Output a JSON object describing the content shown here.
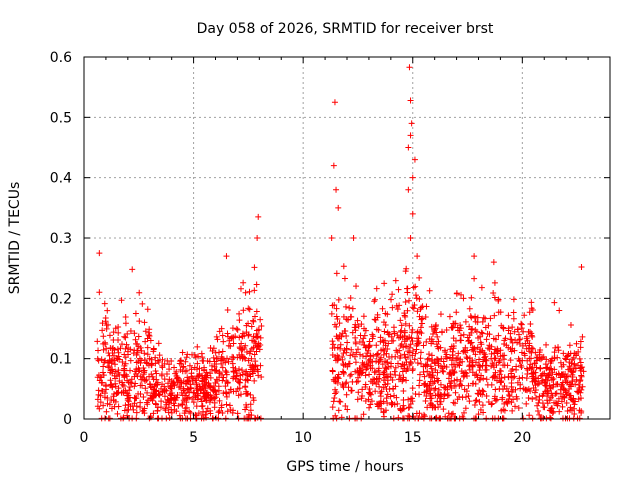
{
  "chart_data": {
    "type": "scatter",
    "title": "Day 058 of 2026, SRMTID for receiver brst",
    "xlabel": "GPS time / hours",
    "ylabel": "SRMTID / TECUs",
    "xlim": [
      0,
      24
    ],
    "ylim": [
      0,
      0.6
    ],
    "xticks": [
      0,
      5,
      10,
      15,
      20
    ],
    "xtick_labels": [
      "0",
      "5",
      "10",
      "15",
      "20"
    ],
    "yticks": [
      0,
      0.1,
      0.2,
      0.3,
      0.4,
      0.5,
      0.6
    ],
    "ytick_labels": [
      "0",
      "0.1",
      "0.2",
      "0.3",
      "0.4",
      "0.5",
      "0.6"
    ],
    "grid": true,
    "marker": "+",
    "series_color": "#ff0000",
    "series": [
      {
        "name": "SRMTID",
        "segments": [
          {
            "x_range": [
              0.6,
              8.1
            ],
            "profile": "dense low band 0-0.15 rising after 5.5h"
          },
          {
            "x_range": [
              11.3,
              22.8
            ],
            "profile": "dense band 0-0.2 with spikes near 11.5h and 15h"
          }
        ],
        "notable_points": [
          {
            "x": 0.7,
            "y": 0.275
          },
          {
            "x": 0.7,
            "y": 0.21
          },
          {
            "x": 2.2,
            "y": 0.248
          },
          {
            "x": 6.5,
            "y": 0.27
          },
          {
            "x": 7.95,
            "y": 0.335
          },
          {
            "x": 7.9,
            "y": 0.3
          },
          {
            "x": 11.45,
            "y": 0.525
          },
          {
            "x": 11.4,
            "y": 0.42
          },
          {
            "x": 11.5,
            "y": 0.38
          },
          {
            "x": 11.6,
            "y": 0.35
          },
          {
            "x": 11.3,
            "y": 0.3
          },
          {
            "x": 12.3,
            "y": 0.3
          },
          {
            "x": 14.85,
            "y": 0.583
          },
          {
            "x": 14.9,
            "y": 0.528
          },
          {
            "x": 14.95,
            "y": 0.49
          },
          {
            "x": 14.9,
            "y": 0.47
          },
          {
            "x": 14.8,
            "y": 0.45
          },
          {
            "x": 15.1,
            "y": 0.43
          },
          {
            "x": 15.0,
            "y": 0.4
          },
          {
            "x": 14.8,
            "y": 0.38
          },
          {
            "x": 15.0,
            "y": 0.34
          },
          {
            "x": 14.9,
            "y": 0.3
          },
          {
            "x": 15.2,
            "y": 0.27
          },
          {
            "x": 17.8,
            "y": 0.27
          },
          {
            "x": 18.7,
            "y": 0.26
          },
          {
            "x": 22.7,
            "y": 0.252
          }
        ]
      }
    ]
  }
}
